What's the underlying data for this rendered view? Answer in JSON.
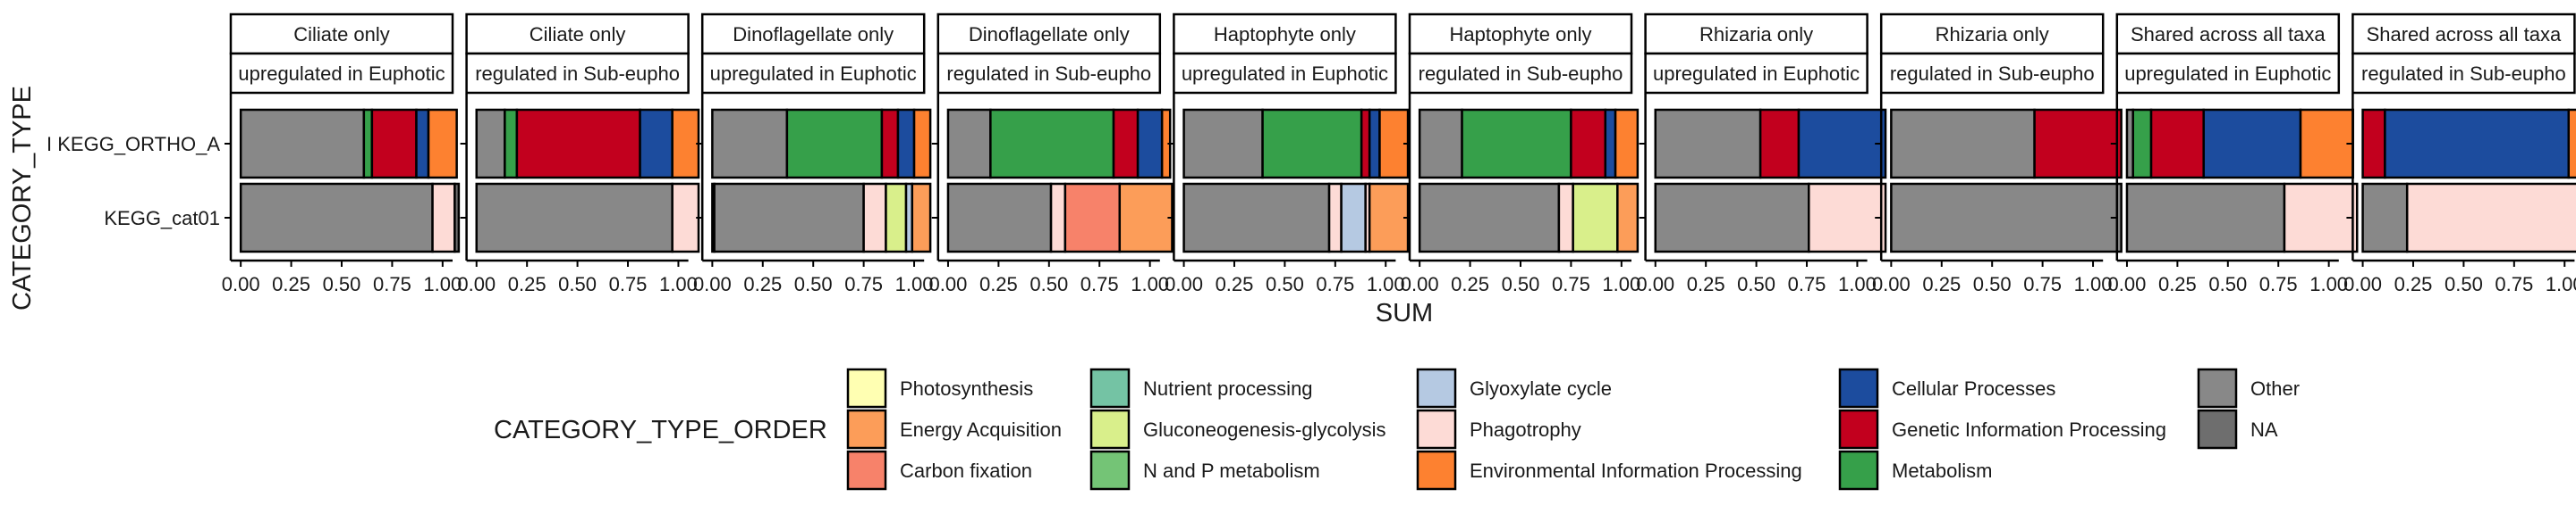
{
  "chart_data": {
    "type": "bar",
    "orientation": "horizontal",
    "stacked": true,
    "xlabel": "SUM",
    "ylabel": "CATEGORY_TYPE",
    "xlim": [
      0,
      1
    ],
    "x_ticks": [
      "0.00",
      "0.25",
      "0.50",
      "0.75",
      "1.00"
    ],
    "categories": [
      "I KEGG_ORTHO_A",
      "KEGG_cat01"
    ],
    "legend": {
      "title": "CATEGORY_TYPE_ORDER",
      "position": "bottom",
      "items": [
        {
          "label": "Photosynthesis",
          "color": "#FFFFB2"
        },
        {
          "label": "Energy Acquisition",
          "color": "#FC9D59"
        },
        {
          "label": "Carbon fixation",
          "color": "#F7826A"
        },
        {
          "label": "Nutrient processing",
          "color": "#74C3A4"
        },
        {
          "label": "Gluconeogenesis-glycolysis",
          "color": "#D9EF8B"
        },
        {
          "label": "N and P metabolism",
          "color": "#74C476"
        },
        {
          "label": "Glyoxylate cycle",
          "color": "#B5C9E2"
        },
        {
          "label": "Phagotrophy",
          "color": "#FDDBD6"
        },
        {
          "label": "Environmental Information Processing",
          "color": "#FD8130"
        },
        {
          "label": "Cellular Processes",
          "color": "#1C4C9E"
        },
        {
          "label": "Genetic Information Processing",
          "color": "#C2001E"
        },
        {
          "label": "Metabolism",
          "color": "#36A04A"
        },
        {
          "label": "Other",
          "color": "#888888"
        },
        {
          "label": "NA",
          "color": "#6E6E6E"
        }
      ]
    },
    "panels": [
      {
        "strip_top": "Ciliate only",
        "strip_bottom": "upregulated in Euphotic",
        "bars": [
          {
            "category": "I KEGG_ORTHO_A",
            "segments": [
              {
                "label": "Other",
                "value": 0.61
              },
              {
                "label": "Metabolism",
                "value": 0.04
              },
              {
                "label": "Genetic Information Processing",
                "value": 0.22
              },
              {
                "label": "Cellular Processes",
                "value": 0.06
              },
              {
                "label": "Environmental Information Processing",
                "value": 0.14
              }
            ]
          },
          {
            "category": "KEGG_cat01",
            "segments": [
              {
                "label": "Other",
                "value": 0.95
              },
              {
                "label": "Phagotrophy",
                "value": 0.11
              },
              {
                "label": "NA",
                "value": 0.02
              }
            ]
          }
        ]
      },
      {
        "strip_top": "Ciliate only",
        "strip_bottom": "regulated in Sub-eupho",
        "bars": [
          {
            "category": "I KEGG_ORTHO_A",
            "segments": [
              {
                "label": "Other",
                "value": 0.14
              },
              {
                "label": "Metabolism",
                "value": 0.06
              },
              {
                "label": "Genetic Information Processing",
                "value": 0.61
              },
              {
                "label": "Cellular Processes",
                "value": 0.16
              },
              {
                "label": "Environmental Information Processing",
                "value": 0.13
              }
            ]
          },
          {
            "category": "KEGG_cat01",
            "segments": [
              {
                "label": "Other",
                "value": 0.97
              },
              {
                "label": "Phagotrophy",
                "value": 0.13
              }
            ]
          }
        ]
      },
      {
        "strip_top": "Dinoflagellate only",
        "strip_bottom": "upregulated in Euphotic",
        "bars": [
          {
            "category": "I KEGG_ORTHO_A",
            "segments": [
              {
                "label": "Other",
                "value": 0.37
              },
              {
                "label": "Metabolism",
                "value": 0.47
              },
              {
                "label": "Genetic Information Processing",
                "value": 0.08
              },
              {
                "label": "Cellular Processes",
                "value": 0.08
              },
              {
                "label": "Environmental Information Processing",
                "value": 0.08
              }
            ]
          },
          {
            "category": "KEGG_cat01",
            "segments": [
              {
                "label": "NA",
                "value": 0.01
              },
              {
                "label": "Other",
                "value": 0.74
              },
              {
                "label": "Phagotrophy",
                "value": 0.11
              },
              {
                "label": "Gluconeogenesis-glycolysis",
                "value": 0.1
              },
              {
                "label": "Glyoxylate cycle",
                "value": 0.03
              },
              {
                "label": "Energy Acquisition",
                "value": 0.09
              }
            ]
          }
        ]
      },
      {
        "strip_top": "Dinoflagellate only",
        "strip_bottom": "regulated in Sub-eupho",
        "bars": [
          {
            "category": "I KEGG_ORTHO_A",
            "segments": [
              {
                "label": "Other",
                "value": 0.21
              },
              {
                "label": "Metabolism",
                "value": 0.61
              },
              {
                "label": "Genetic Information Processing",
                "value": 0.12
              },
              {
                "label": "Cellular Processes",
                "value": 0.12
              },
              {
                "label": "Environmental Information Processing",
                "value": 0.04
              }
            ]
          },
          {
            "category": "KEGG_cat01",
            "segments": [
              {
                "label": "Other",
                "value": 0.51
              },
              {
                "label": "Phagotrophy",
                "value": 0.07
              },
              {
                "label": "Carbon fixation",
                "value": 0.27
              },
              {
                "label": "Energy Acquisition",
                "value": 0.26
              }
            ]
          }
        ]
      },
      {
        "strip_top": "Haptophyte only",
        "strip_bottom": "upregulated in Euphotic",
        "bars": [
          {
            "category": "I KEGG_ORTHO_A",
            "segments": [
              {
                "label": "Other",
                "value": 0.39
              },
              {
                "label": "Metabolism",
                "value": 0.49
              },
              {
                "label": "Genetic Information Processing",
                "value": 0.04
              },
              {
                "label": "Cellular Processes",
                "value": 0.05
              },
              {
                "label": "Environmental Information Processing",
                "value": 0.14
              }
            ]
          },
          {
            "category": "KEGG_cat01",
            "segments": [
              {
                "label": "Other",
                "value": 0.72
              },
              {
                "label": "Phagotrophy",
                "value": 0.06
              },
              {
                "label": "Glyoxylate cycle",
                "value": 0.12
              },
              {
                "label": "Phagotrophy",
                "value": 0.02
              },
              {
                "label": "Energy Acquisition",
                "value": 0.19
              }
            ]
          }
        ]
      },
      {
        "strip_top": "Haptophyte only",
        "strip_bottom": "regulated in Sub-eupho",
        "bars": [
          {
            "category": "I KEGG_ORTHO_A",
            "segments": [
              {
                "label": "Other",
                "value": 0.21
              },
              {
                "label": "Metabolism",
                "value": 0.54
              },
              {
                "label": "Genetic Information Processing",
                "value": 0.17
              },
              {
                "label": "Cellular Processes",
                "value": 0.05
              },
              {
                "label": "Environmental Information Processing",
                "value": 0.11
              }
            ]
          },
          {
            "category": "KEGG_cat01",
            "segments": [
              {
                "label": "Other",
                "value": 0.69
              },
              {
                "label": "Phagotrophy",
                "value": 0.07
              },
              {
                "label": "Gluconeogenesis-glycolysis",
                "value": 0.22
              },
              {
                "label": "Energy Acquisition",
                "value": 0.1
              }
            ]
          }
        ]
      },
      {
        "strip_top": "Rhizaria only",
        "strip_bottom": "upregulated in Euphotic",
        "bars": [
          {
            "category": "I KEGG_ORTHO_A",
            "segments": [
              {
                "label": "Other",
                "value": 0.52
              },
              {
                "label": "Genetic Information Processing",
                "value": 0.19
              },
              {
                "label": "Cellular Processes",
                "value": 0.43
              }
            ]
          },
          {
            "category": "KEGG_cat01",
            "segments": [
              {
                "label": "Other",
                "value": 0.76
              },
              {
                "label": "Phagotrophy",
                "value": 0.38
              }
            ]
          }
        ]
      },
      {
        "strip_top": "Rhizaria only",
        "strip_bottom": "regulated in Sub-eupho",
        "bars": [
          {
            "category": "I KEGG_ORTHO_A",
            "segments": [
              {
                "label": "Other",
                "value": 0.71
              },
              {
                "label": "Genetic Information Processing",
                "value": 0.43
              }
            ]
          },
          {
            "category": "KEGG_cat01",
            "segments": [
              {
                "label": "Other",
                "value": 1.14
              }
            ]
          }
        ]
      },
      {
        "strip_top": "Shared across all taxa",
        "strip_bottom": "upregulated in Euphotic",
        "bars": [
          {
            "category": "I KEGG_ORTHO_A",
            "segments": [
              {
                "label": "Other",
                "value": 0.03
              },
              {
                "label": "Metabolism",
                "value": 0.09
              },
              {
                "label": "Genetic Information Processing",
                "value": 0.26
              },
              {
                "label": "Cellular Processes",
                "value": 0.48
              },
              {
                "label": "Environmental Information Processing",
                "value": 0.26
              }
            ]
          },
          {
            "category": "KEGG_cat01",
            "segments": [
              {
                "label": "Other",
                "value": 0.78
              },
              {
                "label": "Phagotrophy",
                "value": 0.36
              }
            ]
          }
        ]
      },
      {
        "strip_top": "Shared across all taxa",
        "strip_bottom": "regulated in Sub-eupho",
        "bars": [
          {
            "category": "I KEGG_ORTHO_A",
            "segments": [
              {
                "label": "Genetic Information Processing",
                "value": 0.11
              },
              {
                "label": "Cellular Processes",
                "value": 0.91
              },
              {
                "label": "Environmental Information Processing",
                "value": 0.12
              }
            ]
          },
          {
            "category": "KEGG_cat01",
            "segments": [
              {
                "label": "Other",
                "value": 0.22
              },
              {
                "label": "Phagotrophy",
                "value": 0.92
              }
            ]
          }
        ]
      }
    ]
  }
}
